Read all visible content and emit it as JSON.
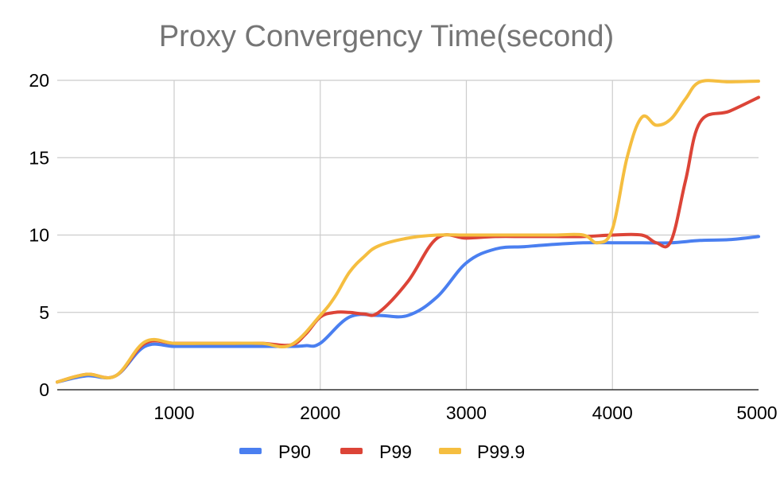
{
  "chart_data": {
    "type": "line",
    "title": "Proxy Convergency Time(second)",
    "xlabel": "",
    "ylabel": "",
    "xlim": [
      200,
      5000
    ],
    "ylim": [
      0,
      20
    ],
    "x_ticks": [
      1000,
      2000,
      3000,
      4000,
      5000
    ],
    "y_ticks": [
      0,
      5,
      10,
      15,
      20
    ],
    "grid": true,
    "legend": "bottom",
    "series": [
      {
        "name": "P90",
        "color": "#4a7ff0",
        "x": [
          200,
          400,
          600,
          800,
          1000,
          1200,
          1400,
          1600,
          1800,
          1900,
          2000,
          2200,
          2400,
          2600,
          2800,
          3000,
          3200,
          3400,
          3600,
          3800,
          4000,
          4200,
          4400,
          4600,
          4800,
          5000
        ],
        "y": [
          0.5,
          0.9,
          0.9,
          2.8,
          2.8,
          2.8,
          2.8,
          2.8,
          2.8,
          2.85,
          3.0,
          4.7,
          4.8,
          4.8,
          6.0,
          8.2,
          9.1,
          9.25,
          9.4,
          9.5,
          9.5,
          9.5,
          9.5,
          9.65,
          9.7,
          9.9
        ]
      },
      {
        "name": "P99",
        "color": "#dc4437",
        "x": [
          200,
          400,
          600,
          800,
          1000,
          1200,
          1400,
          1600,
          1800,
          1900,
          2000,
          2100,
          2200,
          2300,
          2400,
          2600,
          2800,
          3000,
          3200,
          3400,
          3600,
          3800,
          4000,
          4200,
          4300,
          4400,
          4500,
          4600,
          4800,
          5000
        ],
        "y": [
          0.5,
          1.0,
          0.9,
          3.0,
          3.0,
          3.0,
          3.0,
          3.0,
          2.9,
          3.6,
          4.7,
          5.0,
          5.0,
          4.9,
          5.0,
          7.0,
          9.8,
          9.8,
          9.9,
          9.9,
          9.9,
          9.9,
          10.0,
          10.0,
          9.5,
          9.6,
          13.5,
          17.3,
          18.0,
          18.9
        ]
      },
      {
        "name": "P99.9",
        "color": "#f5be40",
        "x": [
          200,
          400,
          600,
          800,
          1000,
          1200,
          1400,
          1600,
          1800,
          2000,
          2100,
          2200,
          2300,
          2400,
          2600,
          2800,
          3000,
          3200,
          3400,
          3600,
          3800,
          3900,
          4000,
          4100,
          4200,
          4300,
          4400,
          4500,
          4600,
          4800,
          5000
        ],
        "y": [
          0.5,
          1.0,
          0.9,
          3.1,
          3.0,
          3.0,
          3.0,
          3.0,
          2.9,
          4.8,
          6.0,
          7.6,
          8.6,
          9.3,
          9.8,
          10.0,
          10.0,
          10.0,
          10.0,
          10.0,
          10.0,
          9.5,
          10.4,
          15.0,
          17.6,
          17.1,
          17.5,
          18.8,
          19.9,
          19.9,
          19.95
        ]
      }
    ]
  }
}
